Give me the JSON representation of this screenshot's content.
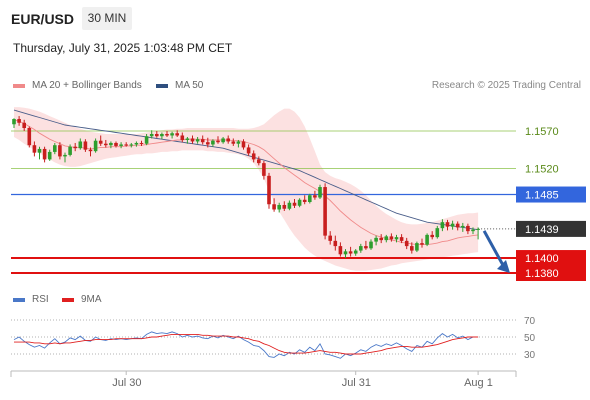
{
  "header": {
    "symbol": "EUR/USD",
    "timeframe": "30 MIN"
  },
  "datetime": "Thursday, July 31, 2025 1:03:48 PM CET",
  "legend": {
    "ma20": {
      "label": "MA 20 + Bollinger Bands",
      "color": "#f08a8a"
    },
    "ma50": {
      "label": "MA 50",
      "color": "#2f4f7f"
    }
  },
  "credit": "Research © 2025 Trading Central",
  "rsi_legend": {
    "rsi": {
      "label": "RSI",
      "color": "#4a78c8"
    },
    "ma9": {
      "label": "9MA",
      "color": "#e02020"
    }
  },
  "chart_data": [
    {
      "type": "candlestick",
      "ylim": [
        1.1365,
        1.164
      ],
      "xlabels": [
        {
          "label": "Jul 30",
          "index": 22
        },
        {
          "label": "Jul 31",
          "index": 67
        },
        {
          "label": "Aug 1",
          "index": 91
        }
      ],
      "levels": [
        {
          "value": 1.157,
          "label": "1.1570",
          "style": "green"
        },
        {
          "value": 1.152,
          "label": "1.1520",
          "style": "green"
        },
        {
          "value": 1.1485,
          "label": "1.1485",
          "style": "blue"
        },
        {
          "value": 1.1439,
          "label": "1.1439",
          "style": "price"
        },
        {
          "value": 1.14,
          "label": "1.1400",
          "style": "red"
        },
        {
          "value": 1.138,
          "label": "1.1380",
          "style": "red"
        }
      ],
      "colors": {
        "up": "#2e9e2e",
        "down": "#c81e1e",
        "green_level": "#8bc34a",
        "blue_level": "#3366dd",
        "red_level": "#e01010",
        "price": "#333333",
        "band": "#fbd4d4",
        "ma20": "#f08a8a",
        "ma50": "#4a5e8a",
        "green_label": "#5a8a1a",
        "arrow": "#2e5fa8"
      },
      "candles": [
        [
          1.1579,
          1.1587,
          1.1574,
          1.1586
        ],
        [
          1.1586,
          1.159,
          1.1577,
          1.1581
        ],
        [
          1.1581,
          1.1585,
          1.157,
          1.1574
        ],
        [
          1.1574,
          1.1576,
          1.1548,
          1.1551
        ],
        [
          1.1551,
          1.1556,
          1.1536,
          1.1541
        ],
        [
          1.1541,
          1.1549,
          1.1532,
          1.1546
        ],
        [
          1.1546,
          1.1549,
          1.1528,
          1.1532
        ],
        [
          1.1532,
          1.1545,
          1.153,
          1.1542
        ],
        [
          1.1542,
          1.1554,
          1.1539,
          1.1551
        ],
        [
          1.1551,
          1.1555,
          1.1532,
          1.1536
        ],
        [
          1.1536,
          1.1541,
          1.1528,
          1.1538
        ],
        [
          1.1538,
          1.1552,
          1.1536,
          1.1549
        ],
        [
          1.1549,
          1.1554,
          1.1543,
          1.1547
        ],
        [
          1.1547,
          1.156,
          1.1545,
          1.1556
        ],
        [
          1.1556,
          1.1559,
          1.1542,
          1.1545
        ],
        [
          1.1545,
          1.1548,
          1.1536,
          1.1543
        ],
        [
          1.1543,
          1.156,
          1.1541,
          1.1557
        ],
        [
          1.1557,
          1.1564,
          1.155,
          1.1553
        ],
        [
          1.1553,
          1.1558,
          1.1548,
          1.1551
        ],
        [
          1.1551,
          1.1556,
          1.1547,
          1.1554
        ],
        [
          1.1554,
          1.1556,
          1.1548,
          1.155
        ],
        [
          1.155,
          1.1555,
          1.1547,
          1.1552
        ],
        [
          1.1552,
          1.1555,
          1.1549,
          1.1551
        ],
        [
          1.1551,
          1.1554,
          1.1548,
          1.1552
        ],
        [
          1.1552,
          1.1556,
          1.1549,
          1.1554
        ],
        [
          1.1554,
          1.1557,
          1.155,
          1.1553
        ],
        [
          1.1553,
          1.1566,
          1.1551,
          1.1563
        ],
        [
          1.1563,
          1.1571,
          1.156,
          1.1566
        ],
        [
          1.1566,
          1.157,
          1.1561,
          1.1563
        ],
        [
          1.1563,
          1.1568,
          1.1559,
          1.1566
        ],
        [
          1.1566,
          1.157,
          1.1562,
          1.1564
        ],
        [
          1.1564,
          1.1569,
          1.156,
          1.1567
        ],
        [
          1.1567,
          1.1571,
          1.1562,
          1.1564
        ],
        [
          1.1564,
          1.1568,
          1.1555,
          1.1558
        ],
        [
          1.1558,
          1.1562,
          1.1553,
          1.156
        ],
        [
          1.156,
          1.1564,
          1.1553,
          1.1556
        ],
        [
          1.1556,
          1.1562,
          1.1553,
          1.1559
        ],
        [
          1.1559,
          1.1564,
          1.1552,
          1.1555
        ],
        [
          1.1555,
          1.1561,
          1.1548,
          1.1552
        ],
        [
          1.1552,
          1.1559,
          1.1549,
          1.1557
        ],
        [
          1.1557,
          1.1563,
          1.1553,
          1.1555
        ],
        [
          1.1555,
          1.1562,
          1.1553,
          1.156
        ],
        [
          1.156,
          1.1564,
          1.1553,
          1.1556
        ],
        [
          1.1556,
          1.156,
          1.155,
          1.1553
        ],
        [
          1.1553,
          1.1558,
          1.1548,
          1.1556
        ],
        [
          1.1556,
          1.1559,
          1.1545,
          1.1548
        ],
        [
          1.1548,
          1.1552,
          1.1537,
          1.154
        ],
        [
          1.154,
          1.1544,
          1.1528,
          1.1532
        ],
        [
          1.1532,
          1.1536,
          1.1524,
          1.1527
        ],
        [
          1.1527,
          1.153,
          1.1505,
          1.151
        ],
        [
          1.151,
          1.1514,
          1.1466,
          1.1472
        ],
        [
          1.1472,
          1.148,
          1.1462,
          1.1465
        ],
        [
          1.1465,
          1.1474,
          1.1461,
          1.1471
        ],
        [
          1.1471,
          1.1476,
          1.1463,
          1.1466
        ],
        [
          1.1466,
          1.1477,
          1.1464,
          1.1474
        ],
        [
          1.1474,
          1.1479,
          1.1467,
          1.147
        ],
        [
          1.147,
          1.148,
          1.1468,
          1.1478
        ],
        [
          1.1478,
          1.1484,
          1.1472,
          1.1475
        ],
        [
          1.1475,
          1.1486,
          1.1473,
          1.1484
        ],
        [
          1.1484,
          1.149,
          1.1478,
          1.1481
        ],
        [
          1.1481,
          1.1498,
          1.1479,
          1.1495
        ],
        [
          1.1495,
          1.15,
          1.1425,
          1.143
        ],
        [
          1.143,
          1.1436,
          1.1418,
          1.1423
        ],
        [
          1.1423,
          1.143,
          1.141,
          1.1416
        ],
        [
          1.1416,
          1.1421,
          1.1402,
          1.1405
        ],
        [
          1.1405,
          1.1412,
          1.14,
          1.1409
        ],
        [
          1.1409,
          1.1415,
          1.1402,
          1.1406
        ],
        [
          1.1406,
          1.1412,
          1.1403,
          1.141
        ],
        [
          1.141,
          1.1419,
          1.1407,
          1.1416
        ],
        [
          1.1416,
          1.1423,
          1.1411,
          1.1413
        ],
        [
          1.1413,
          1.1425,
          1.1411,
          1.1422
        ],
        [
          1.1422,
          1.143,
          1.1417,
          1.1427
        ],
        [
          1.1427,
          1.1432,
          1.142,
          1.1424
        ],
        [
          1.1424,
          1.1431,
          1.1421,
          1.1429
        ],
        [
          1.1429,
          1.1433,
          1.1422,
          1.1425
        ],
        [
          1.1425,
          1.1431,
          1.1421,
          1.1428
        ],
        [
          1.1428,
          1.1432,
          1.142,
          1.1423
        ],
        [
          1.1423,
          1.1427,
          1.1412,
          1.1416
        ],
        [
          1.1416,
          1.1421,
          1.1406,
          1.141
        ],
        [
          1.141,
          1.1422,
          1.1408,
          1.142
        ],
        [
          1.142,
          1.1426,
          1.1414,
          1.1418
        ],
        [
          1.1418,
          1.1433,
          1.1416,
          1.1431
        ],
        [
          1.1431,
          1.1436,
          1.1425,
          1.1428
        ],
        [
          1.1428,
          1.1443,
          1.1426,
          1.144
        ],
        [
          1.144,
          1.1452,
          1.1436,
          1.1448
        ],
        [
          1.1448,
          1.1451,
          1.1437,
          1.1442
        ],
        [
          1.1442,
          1.145,
          1.1438,
          1.1446
        ],
        [
          1.1446,
          1.1449,
          1.1437,
          1.1441
        ],
        [
          1.1441,
          1.1447,
          1.1435,
          1.1443
        ],
        [
          1.1443,
          1.1446,
          1.1432,
          1.1436
        ],
        [
          1.1436,
          1.1441,
          1.1432,
          1.1438
        ],
        [
          1.1438,
          1.1441,
          1.1425,
          1.1439
        ]
      ],
      "ma20": [
        1.1585,
        1.1583,
        1.158,
        1.1576,
        1.1572,
        1.1567,
        1.1563,
        1.1559,
        1.1556,
        1.1553,
        1.155,
        1.1549,
        1.1548,
        1.1548,
        1.1547,
        1.1546,
        1.1547,
        1.1548,
        1.1548,
        1.1549,
        1.1549,
        1.1549,
        1.155,
        1.155,
        1.1551,
        1.1551,
        1.1552,
        1.1553,
        1.1554,
        1.1555,
        1.1556,
        1.1557,
        1.1558,
        1.1558,
        1.1559,
        1.1559,
        1.1559,
        1.1559,
        1.1558,
        1.1558,
        1.1558,
        1.1558,
        1.1558,
        1.1557,
        1.1557,
        1.1556,
        1.1554,
        1.1552,
        1.1549,
        1.1545,
        1.1539,
        1.1533,
        1.1527,
        1.1521,
        1.1516,
        1.1511,
        1.1506,
        1.1501,
        1.1497,
        1.1493,
        1.1489,
        1.1483,
        1.1477,
        1.147,
        1.1463,
        1.1457,
        1.1451,
        1.1446,
        1.1441,
        1.1437,
        1.1433,
        1.143,
        1.1428,
        1.1426,
        1.1424,
        1.1423,
        1.1421,
        1.142,
        1.1419,
        1.1418,
        1.1418,
        1.1418,
        1.1419,
        1.142,
        1.1422,
        1.1423,
        1.1425,
        1.1427,
        1.1428,
        1.1429,
        1.143,
        1.1431
      ],
      "bb_upper": [
        1.1602,
        1.1602,
        1.1601,
        1.16,
        1.1598,
        1.1596,
        1.1593,
        1.159,
        1.1587,
        1.1584,
        1.1581,
        1.1578,
        1.1575,
        1.1573,
        1.1571,
        1.1569,
        1.1568,
        1.1567,
        1.1566,
        1.1566,
        1.1566,
        1.1566,
        1.1566,
        1.1566,
        1.1566,
        1.1567,
        1.1568,
        1.1569,
        1.157,
        1.1571,
        1.1572,
        1.1572,
        1.1573,
        1.1573,
        1.1574,
        1.1574,
        1.1574,
        1.1574,
        1.1574,
        1.1574,
        1.1574,
        1.1574,
        1.1574,
        1.1574,
        1.1573,
        1.1573,
        1.1573,
        1.1574,
        1.1576,
        1.1579,
        1.1585,
        1.1591,
        1.1596,
        1.16,
        1.16,
        1.1596,
        1.1588,
        1.1576,
        1.156,
        1.1543,
        1.1525,
        1.1515,
        1.151,
        1.1507,
        1.1505,
        1.1502,
        1.1499,
        1.1495,
        1.149,
        1.1484,
        1.1477,
        1.147,
        1.1464,
        1.1459,
        1.1455,
        1.1451,
        1.1448,
        1.1446,
        1.1445,
        1.1445,
        1.1446,
        1.1447,
        1.1448,
        1.145,
        1.1452,
        1.1454,
        1.1456,
        1.1458,
        1.1459,
        1.146,
        1.146,
        1.1461
      ],
      "bb_lower": [
        1.1562,
        1.1558,
        1.1553,
        1.1549,
        1.1544,
        1.154,
        1.1536,
        1.1532,
        1.1528,
        1.1525,
        1.1523,
        1.1522,
        1.1522,
        1.1523,
        1.1525,
        1.1527,
        1.1529,
        1.1531,
        1.1533,
        1.1534,
        1.1535,
        1.1536,
        1.1537,
        1.1538,
        1.1539,
        1.1539,
        1.154,
        1.154,
        1.1541,
        1.1542,
        1.1542,
        1.1543,
        1.1543,
        1.1544,
        1.1544,
        1.1544,
        1.1544,
        1.1544,
        1.1543,
        1.1543,
        1.1542,
        1.1542,
        1.1541,
        1.154,
        1.1539,
        1.1537,
        1.1533,
        1.1527,
        1.1518,
        1.1506,
        1.149,
        1.1475,
        1.1462,
        1.1451,
        1.144,
        1.143,
        1.1422,
        1.1414,
        1.1408,
        1.1403,
        1.1399,
        1.1396,
        1.1393,
        1.139,
        1.1388,
        1.1386,
        1.1384,
        1.1383,
        1.1383,
        1.1383,
        1.1384,
        1.1385,
        1.1386,
        1.1388,
        1.139,
        1.1391,
        1.1393,
        1.1394,
        1.1395,
        1.1396,
        1.1397,
        1.1398,
        1.1399,
        1.14,
        1.1401,
        1.1402,
        1.1403,
        1.1404,
        1.1405,
        1.1406,
        1.1407,
        1.1408
      ],
      "ma50": [
        1.1598,
        1.1596,
        1.1594,
        1.1592,
        1.159,
        1.1588,
        1.1586,
        1.1584,
        1.1582,
        1.158,
        1.1578,
        1.1577,
        1.1576,
        1.1575,
        1.1574,
        1.1573,
        1.1572,
        1.1571,
        1.157,
        1.1569,
        1.1568,
        1.1567,
        1.1566,
        1.1565,
        1.1564,
        1.1563,
        1.1562,
        1.1561,
        1.156,
        1.1559,
        1.1558,
        1.1557,
        1.1556,
        1.1555,
        1.1554,
        1.1553,
        1.1552,
        1.1551,
        1.155,
        1.1549,
        1.1548,
        1.1547,
        1.1545,
        1.1543,
        1.1541,
        1.1539,
        1.1537,
        1.1535,
        1.1533,
        1.1531,
        1.1529,
        1.1527,
        1.1525,
        1.1523,
        1.1521,
        1.1519,
        1.1517,
        1.1514,
        1.1511,
        1.1508,
        1.1505,
        1.1502,
        1.1499,
        1.1496,
        1.1493,
        1.149,
        1.1487,
        1.1484,
        1.1481,
        1.1478,
        1.1475,
        1.1472,
        1.1469,
        1.1466,
        1.1463,
        1.146,
        1.1458,
        1.1456,
        1.1454,
        1.1452,
        1.145,
        1.1448,
        1.1447,
        1.1446,
        1.1445,
        1.1444,
        1.1443,
        1.1442,
        1.1441,
        1.144,
        1.1439,
        1.1438
      ],
      "forecast_arrow": {
        "from": 1.1439,
        "to": 1.138
      }
    },
    {
      "type": "line",
      "title": "RSI",
      "ylim": [
        20,
        80
      ],
      "yticks": [
        70,
        50,
        30
      ],
      "series": [
        {
          "name": "RSI",
          "color": "#4a78c8",
          "values": [
            47,
            50,
            45,
            41,
            38,
            40,
            37,
            43,
            48,
            42,
            44,
            49,
            47,
            51,
            46,
            45,
            50,
            47,
            46,
            48,
            47,
            48,
            47,
            48,
            49,
            48,
            53,
            56,
            54,
            55,
            54,
            56,
            54,
            50,
            52,
            50,
            51,
            49,
            48,
            51,
            49,
            52,
            50,
            48,
            51,
            47,
            44,
            40,
            39,
            34,
            27,
            26,
            30,
            28,
            32,
            30,
            35,
            32,
            38,
            34,
            42,
            30,
            29,
            27,
            25,
            30,
            28,
            31,
            35,
            33,
            38,
            41,
            39,
            42,
            40,
            43,
            40,
            36,
            33,
            40,
            38,
            45,
            42,
            49,
            54,
            50,
            53,
            49,
            51,
            47,
            50,
            50
          ]
        },
        {
          "name": "9MA",
          "color": "#e02020",
          "values": [
            44,
            44,
            44,
            44,
            43,
            43,
            42,
            42,
            43,
            42,
            43,
            43,
            44,
            45,
            46,
            46,
            47,
            47,
            47,
            47,
            48,
            48,
            48,
            48,
            48,
            48,
            49,
            50,
            50,
            51,
            52,
            53,
            53,
            53,
            53,
            53,
            53,
            52,
            52,
            51,
            51,
            51,
            51,
            50,
            50,
            49,
            48,
            46,
            45,
            42,
            40,
            37,
            34,
            32,
            31,
            31,
            31,
            31,
            32,
            33,
            34,
            33,
            32,
            32,
            31,
            30,
            30,
            30,
            30,
            31,
            32,
            33,
            34,
            36,
            37,
            38,
            39,
            39,
            38,
            38,
            38,
            39,
            40,
            41,
            43,
            45,
            47,
            48,
            49,
            50,
            50,
            50
          ]
        }
      ]
    }
  ]
}
